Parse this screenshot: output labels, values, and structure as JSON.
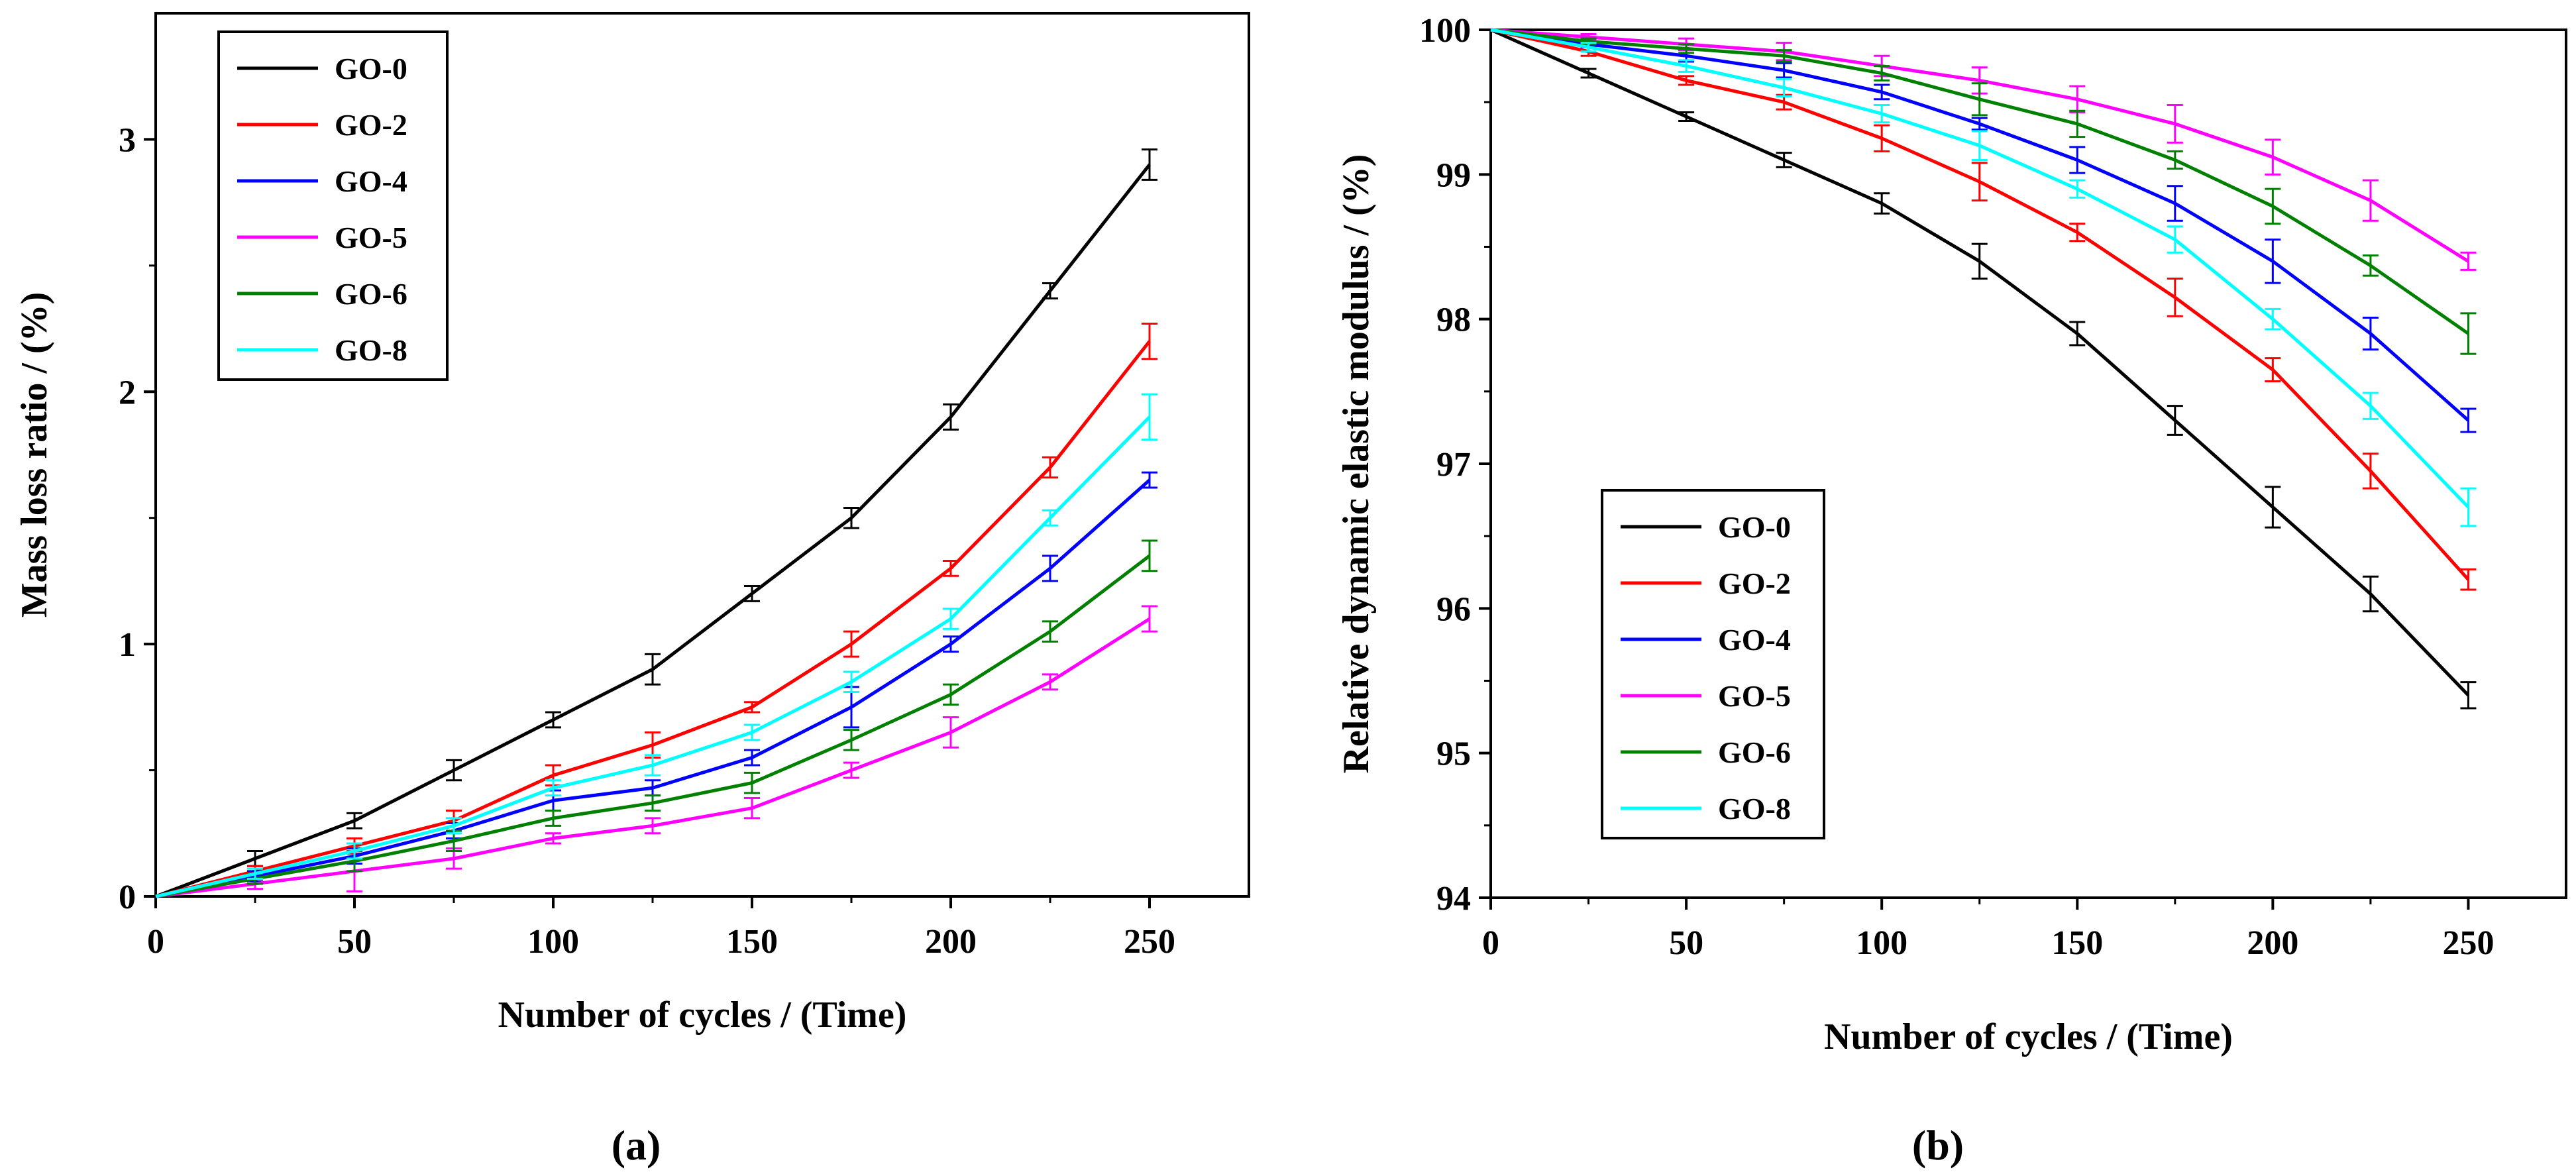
{
  "chart_data": [
    {
      "type": "line",
      "panel_label": "(a)",
      "title": "",
      "xlabel": "Number of cycles / (Time)",
      "ylabel": "Mass loss ratio / (%)",
      "xlim": [
        0,
        275
      ],
      "ylim": [
        0,
        3.5
      ],
      "xticks": [
        0,
        50,
        100,
        150,
        200,
        250
      ],
      "yticks": [
        0,
        1,
        2,
        3
      ],
      "legend_position": "top-left",
      "x": [
        0,
        25,
        50,
        75,
        100,
        125,
        150,
        175,
        200,
        225,
        250
      ],
      "series": [
        {
          "name": "GO-0",
          "color": "#000000",
          "values": [
            0,
            0.15,
            0.3,
            0.5,
            0.7,
            0.9,
            1.2,
            1.5,
            1.9,
            2.4,
            2.9
          ],
          "errors": [
            0,
            0.03,
            0.03,
            0.04,
            0.03,
            0.06,
            0.03,
            0.04,
            0.05,
            0.03,
            0.06
          ]
        },
        {
          "name": "GO-2",
          "color": "#ff0000",
          "values": [
            0,
            0.1,
            0.2,
            0.3,
            0.48,
            0.6,
            0.75,
            1.0,
            1.3,
            1.7,
            2.2
          ],
          "errors": [
            0,
            0.02,
            0.03,
            0.04,
            0.04,
            0.05,
            0.02,
            0.05,
            0.03,
            0.04,
            0.07
          ]
        },
        {
          "name": "GO-4",
          "color": "#0000ff",
          "values": [
            0,
            0.08,
            0.16,
            0.26,
            0.38,
            0.43,
            0.55,
            0.75,
            1.0,
            1.3,
            1.65
          ],
          "errors": [
            0,
            0.02,
            0.03,
            0.03,
            0.04,
            0.03,
            0.03,
            0.08,
            0.03,
            0.05,
            0.03
          ]
        },
        {
          "name": "GO-5",
          "color": "#ff00ff",
          "values": [
            0,
            0.05,
            0.1,
            0.15,
            0.23,
            0.28,
            0.35,
            0.5,
            0.65,
            0.85,
            1.1
          ],
          "errors": [
            0,
            0.02,
            0.08,
            0.04,
            0.02,
            0.03,
            0.04,
            0.03,
            0.06,
            0.03,
            0.05
          ]
        },
        {
          "name": "GO-6",
          "color": "#008000",
          "values": [
            0,
            0.07,
            0.14,
            0.22,
            0.31,
            0.37,
            0.45,
            0.62,
            0.8,
            1.05,
            1.35
          ],
          "errors": [
            0,
            0.02,
            0.04,
            0.04,
            0.03,
            0.03,
            0.04,
            0.04,
            0.04,
            0.04,
            0.06
          ]
        },
        {
          "name": "GO-8",
          "color": "#00ffff",
          "values": [
            0,
            0.09,
            0.18,
            0.28,
            0.43,
            0.52,
            0.65,
            0.85,
            1.1,
            1.5,
            1.9
          ],
          "errors": [
            0,
            0.02,
            0.03,
            0.03,
            0.03,
            0.04,
            0.03,
            0.04,
            0.04,
            0.03,
            0.09
          ]
        }
      ]
    },
    {
      "type": "line",
      "panel_label": "(b)",
      "title": "",
      "xlabel": "Number of cycles / (Time)",
      "ylabel": "Relative dynamic elastic modulus / (%)",
      "xlim": [
        0,
        275
      ],
      "ylim": [
        94,
        100
      ],
      "xticks": [
        0,
        50,
        100,
        150,
        200,
        250
      ],
      "yticks": [
        94,
        95,
        96,
        97,
        98,
        99,
        100
      ],
      "legend_position": "bottom-left",
      "x": [
        0,
        25,
        50,
        75,
        100,
        125,
        150,
        175,
        200,
        225,
        250
      ],
      "series": [
        {
          "name": "GO-0",
          "color": "#000000",
          "values": [
            100,
            99.7,
            99.4,
            99.1,
            98.8,
            98.4,
            97.9,
            97.3,
            96.7,
            96.1,
            95.4
          ],
          "errors": [
            0,
            0.03,
            0.03,
            0.05,
            0.07,
            0.12,
            0.08,
            0.1,
            0.14,
            0.12,
            0.09
          ]
        },
        {
          "name": "GO-2",
          "color": "#ff0000",
          "values": [
            100,
            99.85,
            99.65,
            99.5,
            99.25,
            98.95,
            98.6,
            98.15,
            97.65,
            96.95,
            96.2
          ],
          "errors": [
            0,
            0.03,
            0.03,
            0.05,
            0.09,
            0.13,
            0.06,
            0.13,
            0.08,
            0.12,
            0.07
          ]
        },
        {
          "name": "GO-4",
          "color": "#0000ff",
          "values": [
            100,
            99.9,
            99.82,
            99.72,
            99.57,
            99.35,
            99.1,
            98.8,
            98.4,
            97.9,
            97.3
          ],
          "errors": [
            0,
            0.02,
            0.04,
            0.05,
            0.05,
            0.04,
            0.09,
            0.12,
            0.15,
            0.11,
            0.08
          ]
        },
        {
          "name": "GO-5",
          "color": "#ff00ff",
          "values": [
            100,
            99.95,
            99.9,
            99.85,
            99.75,
            99.65,
            99.52,
            99.35,
            99.12,
            98.82,
            98.4
          ],
          "errors": [
            0,
            0.02,
            0.04,
            0.06,
            0.07,
            0.09,
            0.09,
            0.13,
            0.12,
            0.14,
            0.06
          ]
        },
        {
          "name": "GO-6",
          "color": "#008000",
          "values": [
            100,
            99.92,
            99.87,
            99.82,
            99.7,
            99.52,
            99.35,
            99.1,
            98.78,
            98.37,
            97.9
          ],
          "errors": [
            0,
            0.02,
            0.03,
            0.04,
            0.05,
            0.11,
            0.09,
            0.06,
            0.12,
            0.07,
            0.14
          ]
        },
        {
          "name": "GO-8",
          "color": "#00ffff",
          "values": [
            100,
            99.88,
            99.75,
            99.6,
            99.42,
            99.2,
            98.9,
            98.55,
            98.0,
            97.4,
            96.7
          ],
          "errors": [
            0,
            0.03,
            0.04,
            0.06,
            0.06,
            0.1,
            0.06,
            0.09,
            0.07,
            0.09,
            0.13
          ]
        }
      ]
    }
  ]
}
